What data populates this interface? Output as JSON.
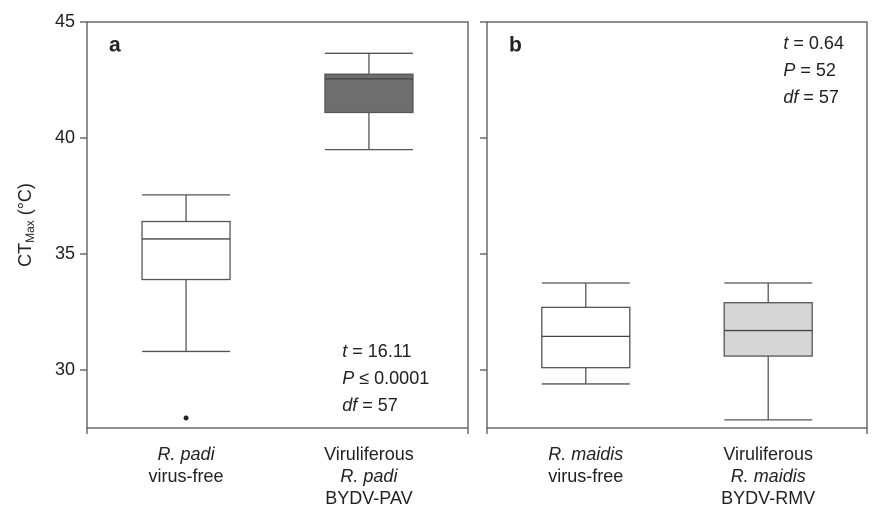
{
  "chart_data": [
    {
      "type": "box",
      "title": "a",
      "ylabel": {
        "main": "CT",
        "sub": "Max",
        "unit": " (°C)"
      },
      "categories": [
        [
          "R. padi",
          "virus-free"
        ],
        [
          "Viruliferous",
          "R. padi",
          "BYDV-PAV"
        ]
      ],
      "series": [
        {
          "color": "#ffffff",
          "whisker_low": 30.8,
          "q1": 33.9,
          "median": 35.65,
          "q3": 36.4,
          "whisker_high": 37.55,
          "outliers": [
            27.93
          ]
        },
        {
          "color": "#6e6e6e",
          "whisker_low": 39.5,
          "q1": 41.1,
          "median": 42.55,
          "q3": 42.75,
          "whisker_high": 43.65,
          "outliers": []
        }
      ],
      "ylim": [
        27.5,
        45
      ],
      "yticks": [
        30,
        35,
        40,
        45
      ],
      "show_tick_labels": true,
      "annotations": [
        {
          "symbol": "t",
          "text": " = 16.11"
        },
        {
          "symbol": "P",
          "text": " ≤ 0.0001"
        },
        {
          "symbol": "df",
          "text": " = 57"
        }
      ]
    },
    {
      "type": "box",
      "title": "b",
      "categories": [
        [
          "R. maidis",
          "virus-free"
        ],
        [
          "Viruliferous",
          "R. maidis",
          "BYDV-RMV"
        ]
      ],
      "series": [
        {
          "color": "#ffffff",
          "whisker_low": 29.4,
          "q1": 30.1,
          "median": 31.45,
          "q3": 32.7,
          "whisker_high": 33.75,
          "outliers": []
        },
        {
          "color": "#d6d6d6",
          "whisker_low": 27.85,
          "q1": 30.6,
          "median": 31.7,
          "q3": 32.9,
          "whisker_high": 33.75,
          "outliers": []
        }
      ],
      "ylim": [
        27.5,
        45
      ],
      "yticks": [
        30,
        35,
        40,
        45
      ],
      "show_tick_labels": false,
      "annotations": [
        {
          "symbol": "t",
          "text": " = 0.64"
        },
        {
          "symbol": "P",
          "text": " = 52"
        },
        {
          "symbol": "df",
          "text": " = 57"
        }
      ]
    }
  ]
}
